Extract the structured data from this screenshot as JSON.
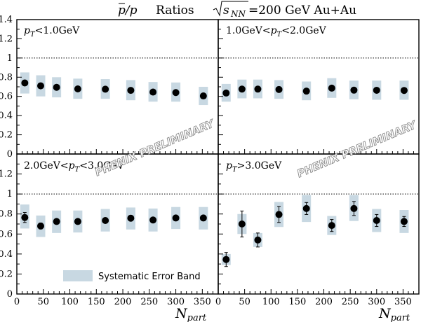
{
  "title": {
    "ratio": "p/p",
    "ratios_word": "Ratios",
    "sqrt_label": "s",
    "sqrt_sub": "NN",
    "energy": "=200 GeV Au+Au"
  },
  "watermark": "PHENIX PRELIMINARY",
  "legend_label": "Systematic Error Band",
  "colors": {
    "band": "#c8d8e2",
    "marker": "#000000",
    "axis": "#000000"
  },
  "chart_data": {
    "type": "scatter",
    "x_axis": {
      "label": "N",
      "label_sub": "part",
      "xlim": [
        0,
        380
      ],
      "ticks": [
        0,
        50,
        100,
        150,
        200,
        250,
        300,
        350
      ]
    },
    "y_axis": {
      "ylim": [
        0,
        1.4
      ],
      "ticks": [
        "0",
        "0.2",
        "0.4",
        "0.6",
        "0.8",
        "1",
        "1.2",
        "1.4"
      ]
    },
    "reference_line_y": 1.0,
    "panels": [
      {
        "pt_left": "",
        "pt_right": "<1.0GeV",
        "x": [
          15,
          45,
          75,
          115,
          167,
          215,
          257,
          300,
          352
        ],
        "y": [
          0.74,
          0.71,
          0.695,
          0.678,
          0.675,
          0.663,
          0.645,
          0.64,
          0.605
        ],
        "stat_err": [
          0.015,
          0.015,
          0.015,
          0.015,
          0.015,
          0.015,
          0.015,
          0.015,
          0.015
        ],
        "sys_low": [
          0.63,
          0.6,
          0.59,
          0.575,
          0.575,
          0.56,
          0.545,
          0.545,
          0.51
        ],
        "sys_high": [
          0.85,
          0.82,
          0.8,
          0.785,
          0.78,
          0.77,
          0.75,
          0.745,
          0.7
        ]
      },
      {
        "pt_left": "1.0GeV<",
        "pt_right": "<2.0GeV",
        "x": [
          15,
          45,
          75,
          115,
          167,
          215,
          257,
          300,
          352
        ],
        "y": [
          0.635,
          0.676,
          0.676,
          0.672,
          0.655,
          0.686,
          0.665,
          0.664,
          0.662
        ],
        "stat_err": [
          0.015,
          0.015,
          0.015,
          0.015,
          0.015,
          0.015,
          0.015,
          0.015,
          0.015
        ],
        "sys_low": [
          0.545,
          0.58,
          0.58,
          0.575,
          0.56,
          0.585,
          0.57,
          0.565,
          0.565
        ],
        "sys_high": [
          0.73,
          0.775,
          0.775,
          0.77,
          0.755,
          0.79,
          0.765,
          0.765,
          0.765
        ]
      },
      {
        "pt_left": "2.0GeV<",
        "pt_right": "<3.0GeV",
        "x": [
          15,
          45,
          75,
          115,
          167,
          215,
          257,
          300,
          352
        ],
        "y": [
          0.765,
          0.68,
          0.725,
          0.725,
          0.735,
          0.758,
          0.74,
          0.76,
          0.76
        ],
        "stat_err": [
          0.05,
          0.03,
          0.02,
          0.02,
          0.02,
          0.02,
          0.02,
          0.02,
          0.02
        ],
        "sys_low": [
          0.655,
          0.57,
          0.61,
          0.615,
          0.625,
          0.645,
          0.625,
          0.65,
          0.645
        ],
        "sys_high": [
          0.895,
          0.785,
          0.835,
          0.835,
          0.85,
          0.865,
          0.855,
          0.87,
          0.87
        ]
      },
      {
        "pt_left": "",
        "pt_right": ">3.0GeV",
        "x": [
          15,
          45,
          75,
          115,
          167,
          215,
          257,
          300,
          352
        ],
        "y": [
          0.345,
          0.7,
          0.54,
          0.795,
          0.855,
          0.685,
          0.855,
          0.735,
          0.725
        ],
        "stat_err": [
          0.07,
          0.13,
          0.07,
          0.08,
          0.06,
          0.06,
          0.07,
          0.06,
          0.05
        ],
        "sys_low": [
          0.29,
          0.6,
          0.47,
          0.67,
          0.72,
          0.59,
          0.73,
          0.62,
          0.61
        ],
        "sys_high": [
          0.4,
          0.8,
          0.61,
          0.92,
          0.99,
          0.78,
          0.99,
          0.85,
          0.84
        ]
      }
    ]
  }
}
